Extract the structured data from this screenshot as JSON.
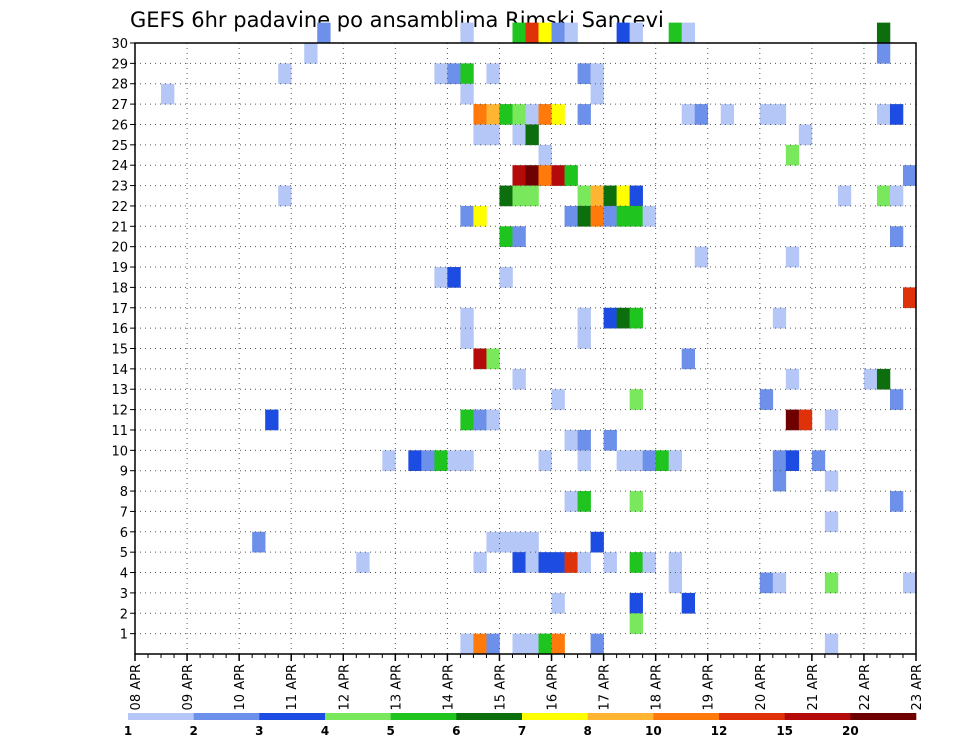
{
  "chart_data": {
    "type": "heatmap",
    "title": "GEFS 6hr padavine po ansamblima Rimski Sancevi",
    "xlabel": "",
    "ylabel": "",
    "x_tick_labels": [
      "08 APR",
      "09 APR",
      "10 APR",
      "11 APR",
      "12 APR",
      "13 APR",
      "14 APR",
      "15 APR",
      "16 APR",
      "17 APR",
      "18 APR",
      "19 APR",
      "20 APR",
      "21 APR",
      "22 APR",
      "23 APR"
    ],
    "x_range_days": [
      0,
      15
    ],
    "steps_per_day": 4,
    "y_tick_labels": [
      "1",
      "2",
      "3",
      "4",
      "5",
      "6",
      "7",
      "8",
      "9",
      "10",
      "11",
      "12",
      "13",
      "14",
      "15",
      "16",
      "17",
      "18",
      "19",
      "20",
      "21",
      "22",
      "23",
      "24",
      "25",
      "26",
      "27",
      "28",
      "29",
      "30"
    ],
    "y_range": [
      0,
      30
    ],
    "grid": "dotted",
    "legend": {
      "position": "bottom",
      "thresholds": [
        "1",
        "2",
        "3",
        "4",
        "5",
        "6",
        "7",
        "8",
        "10",
        "12",
        "15",
        "20"
      ],
      "colors": [
        "#b4c7f7",
        "#6d91ea",
        "#1c4ce2",
        "#7ae85c",
        "#1fc41f",
        "#0c6e0c",
        "#ffff00",
        "#ffb432",
        "#ff7a0a",
        "#e0320a",
        "#b40a0a",
        "#6e0000"
      ]
    },
    "cells": [
      [
        14,
        30,
        2
      ],
      [
        25,
        30,
        1
      ],
      [
        29,
        30,
        5
      ],
      [
        30,
        30,
        10
      ],
      [
        31,
        30,
        7
      ],
      [
        32,
        30,
        2
      ],
      [
        33,
        30,
        1
      ],
      [
        37,
        30,
        3
      ],
      [
        38,
        30,
        1
      ],
      [
        41,
        30,
        5
      ],
      [
        42,
        30,
        1
      ],
      [
        57,
        30,
        6
      ],
      [
        13,
        29,
        1
      ],
      [
        57,
        29,
        2
      ],
      [
        11,
        28,
        1
      ],
      [
        23,
        28,
        1
      ],
      [
        24,
        28,
        2
      ],
      [
        25,
        28,
        5
      ],
      [
        27,
        28,
        1
      ],
      [
        34,
        28,
        2
      ],
      [
        35,
        28,
        1
      ],
      [
        2,
        27,
        1
      ],
      [
        25,
        27,
        1
      ],
      [
        35,
        27,
        1
      ],
      [
        26,
        26,
        9
      ],
      [
        27,
        26,
        8
      ],
      [
        28,
        26,
        5
      ],
      [
        29,
        26,
        4
      ],
      [
        30,
        26,
        1
      ],
      [
        31,
        26,
        9
      ],
      [
        32,
        26,
        7
      ],
      [
        34,
        26,
        2
      ],
      [
        42,
        26,
        1
      ],
      [
        43,
        26,
        2
      ],
      [
        45,
        26,
        1
      ],
      [
        48,
        26,
        1
      ],
      [
        49,
        26,
        1
      ],
      [
        57,
        26,
        1
      ],
      [
        58,
        26,
        3
      ],
      [
        26,
        25,
        1
      ],
      [
        27,
        25,
        1
      ],
      [
        29,
        25,
        1
      ],
      [
        30,
        25,
        6
      ],
      [
        51,
        25,
        1
      ],
      [
        31,
        24,
        1
      ],
      [
        50,
        24,
        4
      ],
      [
        29,
        23,
        11
      ],
      [
        30,
        23,
        12
      ],
      [
        31,
        23,
        9
      ],
      [
        32,
        23,
        11
      ],
      [
        33,
        23,
        5
      ],
      [
        59,
        23,
        2
      ],
      [
        11,
        22,
        1
      ],
      [
        28,
        22,
        6
      ],
      [
        29,
        22,
        4
      ],
      [
        30,
        22,
        4
      ],
      [
        34,
        22,
        4
      ],
      [
        35,
        22,
        8
      ],
      [
        36,
        22,
        6
      ],
      [
        37,
        22,
        7
      ],
      [
        38,
        22,
        3
      ],
      [
        54,
        22,
        1
      ],
      [
        57,
        22,
        4
      ],
      [
        58,
        22,
        1
      ],
      [
        25,
        21,
        2
      ],
      [
        26,
        21,
        7
      ],
      [
        33,
        21,
        2
      ],
      [
        34,
        21,
        6
      ],
      [
        35,
        21,
        9
      ],
      [
        36,
        21,
        2
      ],
      [
        37,
        21,
        5
      ],
      [
        38,
        21,
        5
      ],
      [
        39,
        21,
        1
      ],
      [
        28,
        20,
        5
      ],
      [
        29,
        20,
        2
      ],
      [
        58,
        20,
        2
      ],
      [
        43,
        19,
        1
      ],
      [
        50,
        19,
        1
      ],
      [
        23,
        18,
        1
      ],
      [
        24,
        18,
        3
      ],
      [
        28,
        18,
        1
      ],
      [
        59,
        17,
        10
      ],
      [
        25,
        16,
        1
      ],
      [
        34,
        16,
        1
      ],
      [
        36,
        16,
        3
      ],
      [
        37,
        16,
        6
      ],
      [
        38,
        16,
        5
      ],
      [
        49,
        16,
        1
      ],
      [
        25,
        15,
        1
      ],
      [
        34,
        15,
        1
      ],
      [
        26,
        14,
        11
      ],
      [
        27,
        14,
        4
      ],
      [
        42,
        14,
        2
      ],
      [
        29,
        13,
        1
      ],
      [
        50,
        13,
        1
      ],
      [
        56,
        13,
        1
      ],
      [
        57,
        13,
        6
      ],
      [
        32,
        12,
        1
      ],
      [
        38,
        12,
        4
      ],
      [
        48,
        12,
        2
      ],
      [
        58,
        12,
        2
      ],
      [
        10,
        11,
        3
      ],
      [
        25,
        11,
        5
      ],
      [
        26,
        11,
        2
      ],
      [
        27,
        11,
        1
      ],
      [
        50,
        11,
        12
      ],
      [
        51,
        11,
        10
      ],
      [
        53,
        11,
        1
      ],
      [
        33,
        10,
        1
      ],
      [
        34,
        10,
        2
      ],
      [
        36,
        10,
        2
      ],
      [
        19,
        9,
        1
      ],
      [
        21,
        9,
        3
      ],
      [
        22,
        9,
        2
      ],
      [
        23,
        9,
        5
      ],
      [
        24,
        9,
        1
      ],
      [
        25,
        9,
        1
      ],
      [
        31,
        9,
        1
      ],
      [
        34,
        9,
        1
      ],
      [
        37,
        9,
        1
      ],
      [
        38,
        9,
        1
      ],
      [
        39,
        9,
        2
      ],
      [
        40,
        9,
        5
      ],
      [
        41,
        9,
        1
      ],
      [
        49,
        9,
        2
      ],
      [
        50,
        9,
        3
      ],
      [
        52,
        9,
        2
      ],
      [
        49,
        8,
        2
      ],
      [
        53,
        8,
        1
      ],
      [
        33,
        7,
        1
      ],
      [
        34,
        7,
        5
      ],
      [
        38,
        7,
        4
      ],
      [
        58,
        7,
        2
      ],
      [
        53,
        6,
        1
      ],
      [
        9,
        5,
        2
      ],
      [
        27,
        5,
        1
      ],
      [
        28,
        5,
        1
      ],
      [
        29,
        5,
        1
      ],
      [
        30,
        5,
        1
      ],
      [
        35,
        5,
        3
      ],
      [
        17,
        4,
        1
      ],
      [
        26,
        4,
        1
      ],
      [
        29,
        4,
        3
      ],
      [
        30,
        4,
        1
      ],
      [
        31,
        4,
        3
      ],
      [
        32,
        4,
        3
      ],
      [
        33,
        4,
        10
      ],
      [
        34,
        4,
        1
      ],
      [
        36,
        4,
        1
      ],
      [
        38,
        4,
        5
      ],
      [
        39,
        4,
        1
      ],
      [
        41,
        4,
        1
      ],
      [
        41,
        3,
        1
      ],
      [
        48,
        3,
        2
      ],
      [
        49,
        3,
        1
      ],
      [
        53,
        3,
        4
      ],
      [
        59,
        3,
        1
      ],
      [
        32,
        2,
        1
      ],
      [
        38,
        2,
        3
      ],
      [
        42,
        2,
        3
      ],
      [
        38,
        1,
        4
      ],
      [
        25,
        0,
        1
      ],
      [
        26,
        0,
        9
      ],
      [
        27,
        0,
        2
      ],
      [
        29,
        0,
        1
      ],
      [
        30,
        0,
        1
      ],
      [
        31,
        0,
        5
      ],
      [
        32,
        0,
        9
      ],
      [
        35,
        0,
        2
      ],
      [
        53,
        0,
        1
      ]
    ]
  }
}
